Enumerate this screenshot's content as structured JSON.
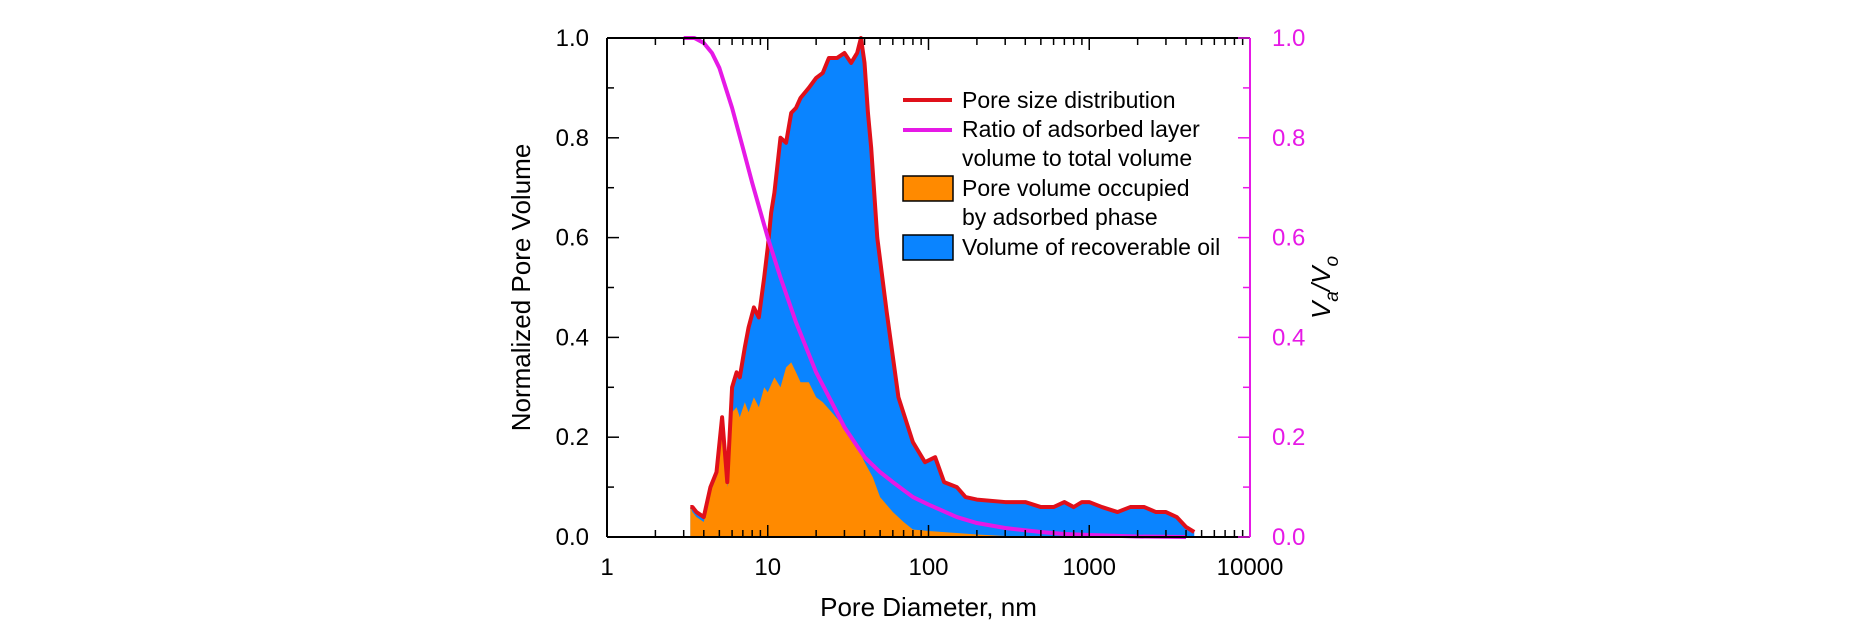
{
  "chart_data": {
    "type": "area",
    "title": "",
    "xlabel": "Pore Diameter, nm",
    "ylabel": "Normalized Pore Volume",
    "y2label_main": "V",
    "y2label_sub1": "a",
    "y2label_slash": "/V",
    "y2label_sub2": "o",
    "xscale": "log",
    "xlim": [
      1,
      10000
    ],
    "ylim": [
      0,
      1
    ],
    "y2lim": [
      0,
      1
    ],
    "x_ticks": [
      1,
      10,
      100,
      1000,
      10000
    ],
    "x_tick_labels": [
      "1",
      "10",
      "100",
      "1000",
      "10000"
    ],
    "y_ticks": [
      0,
      0.2,
      0.4,
      0.6,
      0.8,
      1.0
    ],
    "y_tick_labels": [
      "0.0",
      "0.2",
      "0.4",
      "0.6",
      "0.8",
      "1.0"
    ],
    "y2_tick_labels": [
      "0.0",
      "0.2",
      "0.4",
      "0.6",
      "0.8",
      "1.0"
    ],
    "grid": false,
    "legend_position": "top-right",
    "colors": {
      "psd": "#e0101a",
      "ratio": "#e619e6",
      "adsorbed": "#ff8a00",
      "recoverable": "#0a84ff",
      "right_axis": "#e619e6"
    },
    "series": [
      {
        "name": "Pore size distribution",
        "kind": "line",
        "x": [
          3.3,
          3.4,
          3.6,
          4.0,
          4.4,
          4.8,
          5.2,
          5.6,
          6.0,
          6.4,
          6.7,
          7.2,
          7.6,
          8.2,
          8.8,
          9.5,
          10.0,
          10.5,
          11.0,
          12.0,
          13.0,
          14.0,
          15.0,
          16.0,
          18.0,
          20.0,
          22.0,
          24.0,
          27.0,
          30.0,
          33.0,
          36.0,
          38.0,
          40.0,
          42.0,
          44.0,
          48.0,
          55.0,
          65.0,
          80.0,
          95.0,
          110.0,
          125.0,
          150.0,
          170.0,
          200.0,
          300.0,
          400.0,
          500.0,
          600.0,
          700.0,
          800.0,
          900.0,
          1000.0,
          1200.0,
          1500.0,
          1800.0,
          2200.0,
          2600.0,
          3000.0,
          3500.0,
          4000.0,
          4500.0
        ],
        "y": [
          0.06,
          0.06,
          0.05,
          0.04,
          0.1,
          0.13,
          0.24,
          0.11,
          0.3,
          0.33,
          0.32,
          0.38,
          0.42,
          0.46,
          0.44,
          0.52,
          0.58,
          0.65,
          0.69,
          0.8,
          0.79,
          0.85,
          0.86,
          0.88,
          0.9,
          0.92,
          0.93,
          0.96,
          0.96,
          0.97,
          0.95,
          0.97,
          1.0,
          0.95,
          0.85,
          0.78,
          0.6,
          0.45,
          0.28,
          0.19,
          0.15,
          0.16,
          0.11,
          0.1,
          0.08,
          0.075,
          0.07,
          0.07,
          0.06,
          0.06,
          0.07,
          0.06,
          0.07,
          0.07,
          0.06,
          0.05,
          0.06,
          0.06,
          0.05,
          0.05,
          0.04,
          0.02,
          0.01
        ]
      },
      {
        "name": "Ratio of adsorbed layer volume to total volume",
        "name_line1": "Ratio of adsorbed layer",
        "name_line2": "volume to total volume",
        "kind": "line",
        "axis": "right",
        "x": [
          3.0,
          3.5,
          4.0,
          4.5,
          5.0,
          6.0,
          7.0,
          8.0,
          10.0,
          12.0,
          15.0,
          20.0,
          25.0,
          30.0,
          40.0,
          50.0,
          60.0,
          80.0,
          100.0,
          150.0,
          200.0,
          300.0,
          500.0,
          700.0,
          1000.0,
          2000.0,
          4000.0
        ],
        "y": [
          1.0,
          1.0,
          0.99,
          0.97,
          0.94,
          0.86,
          0.78,
          0.71,
          0.6,
          0.52,
          0.43,
          0.33,
          0.27,
          0.22,
          0.16,
          0.13,
          0.11,
          0.08,
          0.065,
          0.04,
          0.028,
          0.018,
          0.01,
          0.006,
          0.004,
          0.001,
          0.0
        ]
      },
      {
        "name": "Pore volume occupied by adsorbed phase",
        "name_line1": "Pore volume occupied",
        "name_line2": "by adsorbed phase",
        "kind": "area",
        "x": [
          3.3,
          3.4,
          3.6,
          4.0,
          4.4,
          4.8,
          5.2,
          5.6,
          6.0,
          6.4,
          6.7,
          7.2,
          7.6,
          8.2,
          8.8,
          9.5,
          10.0,
          11.0,
          12.0,
          13.0,
          14.0,
          15.0,
          16.0,
          18.0,
          20.0,
          22.0,
          25.0,
          30.0,
          35.0,
          40.0,
          45.0,
          50.0,
          60.0,
          70.0,
          80.0,
          100.0,
          150.0,
          200.0,
          300.0,
          400.0,
          600.0,
          1000.0,
          4500.0
        ],
        "y": [
          0.06,
          0.05,
          0.04,
          0.03,
          0.09,
          0.12,
          0.23,
          0.1,
          0.25,
          0.26,
          0.24,
          0.27,
          0.25,
          0.28,
          0.26,
          0.3,
          0.29,
          0.32,
          0.3,
          0.34,
          0.35,
          0.33,
          0.31,
          0.31,
          0.28,
          0.27,
          0.25,
          0.22,
          0.19,
          0.15,
          0.12,
          0.08,
          0.05,
          0.03,
          0.015,
          0.012,
          0.008,
          0.005,
          0.002,
          0.001,
          0.0,
          0.0,
          0.0
        ]
      },
      {
        "name": "Volume of recoverable oil",
        "kind": "area",
        "note_fill": "region between adsorbed-phase area and pore size distribution"
      }
    ]
  }
}
